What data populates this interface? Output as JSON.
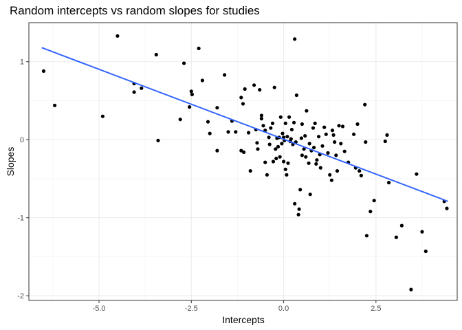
{
  "chart_data": {
    "type": "scatter",
    "title": "Random intercepts vs random slopes for studies",
    "xlabel": "Intercepts",
    "ylabel": "Slopes",
    "xlim": [
      -6.9,
      4.7
    ],
    "ylim": [
      -2.06,
      1.5
    ],
    "x_ticks": [
      -5.0,
      -2.5,
      0.0,
      2.5
    ],
    "x_tick_labels": [
      "-5.0",
      "-2.5",
      "0.0",
      "2.5"
    ],
    "y_ticks": [
      -2,
      -1,
      0,
      1
    ],
    "y_tick_labels": [
      "-2",
      "-1",
      "0",
      "1"
    ],
    "grid": true,
    "theme": "bw",
    "point_color": "#000000",
    "trend_line": {
      "method": "linear",
      "color": "#3366FF",
      "x": [
        -6.55,
        4.45
      ],
      "y": [
        1.18,
        -0.79
      ]
    },
    "points": [
      [
        -6.5,
        0.88
      ],
      [
        -6.2,
        0.44
      ],
      [
        -4.9,
        0.3
      ],
      [
        -4.5,
        1.33
      ],
      [
        -4.05,
        0.72
      ],
      [
        -4.05,
        0.61
      ],
      [
        -3.85,
        0.66
      ],
      [
        -3.45,
        1.09
      ],
      [
        -3.4,
        -0.01
      ],
      [
        -2.8,
        0.26
      ],
      [
        -2.7,
        0.98
      ],
      [
        -2.55,
        0.42
      ],
      [
        -2.5,
        0.62
      ],
      [
        -2.48,
        0.58
      ],
      [
        -2.3,
        1.17
      ],
      [
        -2.2,
        0.76
      ],
      [
        -2.05,
        0.23
      ],
      [
        -2.0,
        0.08
      ],
      [
        -1.8,
        0.41
      ],
      [
        -1.8,
        -0.14
      ],
      [
        -1.6,
        0.83
      ],
      [
        -1.5,
        0.1
      ],
      [
        -1.4,
        0.24
      ],
      [
        -1.3,
        0.1
      ],
      [
        -1.15,
        0.54
      ],
      [
        -1.15,
        -0.14
      ],
      [
        -1.1,
        0.46
      ],
      [
        -1.08,
        -0.16
      ],
      [
        -1.05,
        0.65
      ],
      [
        -0.95,
        0.09
      ],
      [
        -0.9,
        -0.4
      ],
      [
        -0.8,
        0.7
      ],
      [
        -0.75,
        0.13
      ],
      [
        -0.72,
        -0.04
      ],
      [
        -0.7,
        -0.12
      ],
      [
        -0.65,
        0.64
      ],
      [
        -0.6,
        0.27
      ],
      [
        -0.6,
        0.31
      ],
      [
        -0.55,
        0.18
      ],
      [
        -0.5,
        0.12
      ],
      [
        -0.5,
        -0.29
      ],
      [
        -0.45,
        -0.45
      ],
      [
        -0.4,
        0.03
      ],
      [
        -0.38,
        -0.06
      ],
      [
        -0.35,
        0.15
      ],
      [
        -0.3,
        0.21
      ],
      [
        -0.28,
        -0.28
      ],
      [
        -0.25,
        0.67
      ],
      [
        -0.22,
        -0.12
      ],
      [
        -0.2,
        -0.24
      ],
      [
        -0.18,
        0.02
      ],
      [
        -0.15,
        -0.09
      ],
      [
        -0.12,
        0.03
      ],
      [
        -0.1,
        -0.22
      ],
      [
        -0.08,
        0.29
      ],
      [
        -0.05,
        -0.05
      ],
      [
        -0.03,
        0.08
      ],
      [
        0.0,
        0.03
      ],
      [
        0.0,
        -0.28
      ],
      [
        0.02,
        -0.01
      ],
      [
        0.05,
        0.21
      ],
      [
        0.05,
        -0.38
      ],
      [
        0.08,
        -0.45
      ],
      [
        0.1,
        0.04
      ],
      [
        0.12,
        -0.3
      ],
      [
        0.15,
        0.29
      ],
      [
        0.18,
        -0.02
      ],
      [
        0.2,
        0.01
      ],
      [
        0.22,
        0.13
      ],
      [
        0.25,
        -0.06
      ],
      [
        0.28,
        0.22
      ],
      [
        0.3,
        1.29
      ],
      [
        0.3,
        -0.82
      ],
      [
        0.33,
        -0.03
      ],
      [
        0.35,
        0.57
      ],
      [
        0.4,
        -0.96
      ],
      [
        0.42,
        -0.89
      ],
      [
        0.45,
        -0.64
      ],
      [
        0.48,
        0.02
      ],
      [
        0.5,
        0.2
      ],
      [
        0.5,
        -0.2
      ],
      [
        0.55,
        -0.12
      ],
      [
        0.58,
        0.05
      ],
      [
        0.6,
        -0.22
      ],
      [
        0.62,
        0.37
      ],
      [
        0.68,
        -0.3
      ],
      [
        0.7,
        -0.05
      ],
      [
        0.72,
        -0.7
      ],
      [
        0.75,
        -0.14
      ],
      [
        0.8,
        0.15
      ],
      [
        0.82,
        -0.1
      ],
      [
        0.85,
        0.21
      ],
      [
        0.88,
        -0.31
      ],
      [
        0.9,
        -0.26
      ],
      [
        0.95,
        0.04
      ],
      [
        0.98,
        -0.19
      ],
      [
        1.0,
        -0.36
      ],
      [
        1.05,
        -0.08
      ],
      [
        1.1,
        0.16
      ],
      [
        1.15,
        0.07
      ],
      [
        1.2,
        -0.17
      ],
      [
        1.25,
        -0.45
      ],
      [
        1.3,
        -0.52
      ],
      [
        1.32,
        0.12
      ],
      [
        1.35,
        0.06
      ],
      [
        1.38,
        -0.03
      ],
      [
        1.42,
        -0.2
      ],
      [
        1.45,
        -0.4
      ],
      [
        1.5,
        0.18
      ],
      [
        1.55,
        -0.05
      ],
      [
        1.6,
        0.17
      ],
      [
        1.65,
        -0.15
      ],
      [
        1.75,
        -0.29
      ],
      [
        1.9,
        0.07
      ],
      [
        1.95,
        -0.36
      ],
      [
        2.0,
        0.2
      ],
      [
        2.05,
        -0.4
      ],
      [
        2.1,
        -0.46
      ],
      [
        2.2,
        0.45
      ],
      [
        2.22,
        -0.03
      ],
      [
        2.25,
        -1.23
      ],
      [
        2.35,
        -0.92
      ],
      [
        2.45,
        -0.78
      ],
      [
        2.75,
        -0.02
      ],
      [
        2.8,
        0.06
      ],
      [
        2.85,
        -0.55
      ],
      [
        3.05,
        -1.25
      ],
      [
        3.2,
        -1.1
      ],
      [
        3.45,
        -1.92
      ],
      [
        3.6,
        -0.44
      ],
      [
        3.75,
        -1.18
      ],
      [
        3.85,
        -1.43
      ],
      [
        4.35,
        -0.79
      ],
      [
        4.42,
        -0.88
      ]
    ]
  }
}
